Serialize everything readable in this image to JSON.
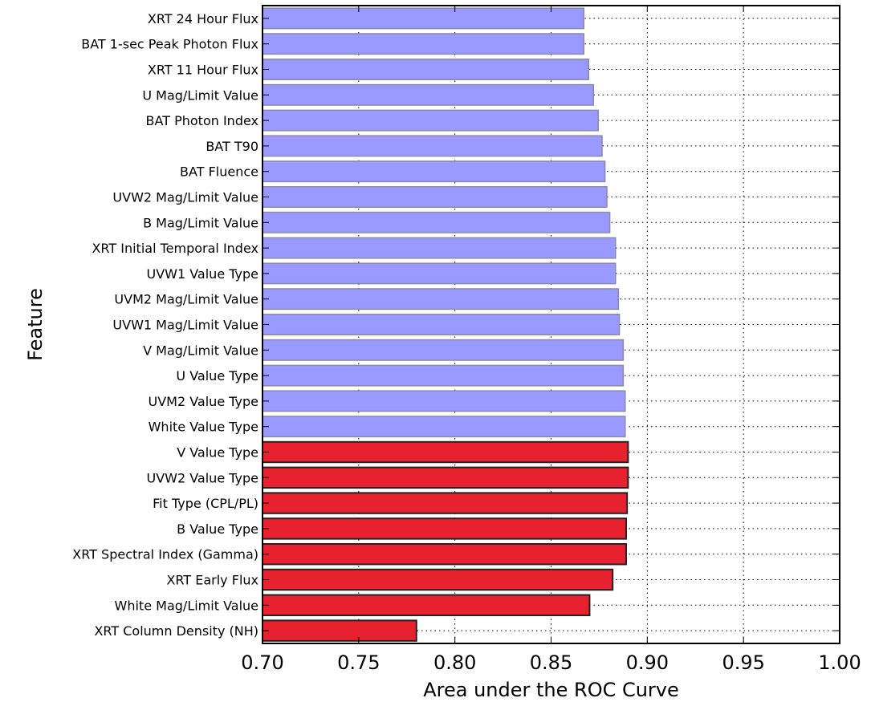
{
  "chart_data": {
    "type": "bar",
    "orientation": "horizontal",
    "xlabel": "Area under the ROC Curve",
    "ylabel": "Feature",
    "xlim": [
      0.7,
      1.0
    ],
    "xticks": [
      "0.70",
      "0.75",
      "0.80",
      "0.85",
      "0.90",
      "0.95",
      "1.00"
    ],
    "grid": true,
    "colors": {
      "group_a": "#9999ff",
      "group_b": "#e8212f"
    },
    "categories": [
      "XRT 24 Hour Flux",
      "BAT 1-sec Peak Photon Flux",
      "XRT 11 Hour Flux",
      "U Mag/Limit Value",
      "BAT Photon Index",
      "BAT T90",
      "BAT Fluence",
      "UVW2 Mag/Limit Value",
      "B Mag/Limit Value",
      "XRT Initial Temporal Index",
      "UVW1 Value Type",
      "UVM2 Mag/Limit Value",
      "UVW1 Mag/Limit Value",
      "V Mag/Limit Value",
      "U Value Type",
      "UVM2 Value Type",
      "White Value Type",
      "V Value Type",
      "UVW2 Value Type",
      "Fit Type (CPL/PL)",
      "B Value Type",
      "XRT Spectral Index (Gamma)",
      "XRT Early Flux",
      "White Mag/Limit Value",
      "XRT Column Density (NH)"
    ],
    "values": [
      0.867,
      0.867,
      0.8695,
      0.872,
      0.8745,
      0.8765,
      0.878,
      0.879,
      0.8805,
      0.8835,
      0.8835,
      0.885,
      0.8855,
      0.8875,
      0.8875,
      0.8885,
      0.8885,
      0.89,
      0.89,
      0.8895,
      0.889,
      0.889,
      0.882,
      0.87,
      0.78
    ],
    "groups": [
      "a",
      "a",
      "a",
      "a",
      "a",
      "a",
      "a",
      "a",
      "a",
      "a",
      "a",
      "a",
      "a",
      "a",
      "a",
      "a",
      "a",
      "b",
      "b",
      "b",
      "b",
      "b",
      "b",
      "b",
      "b"
    ]
  }
}
